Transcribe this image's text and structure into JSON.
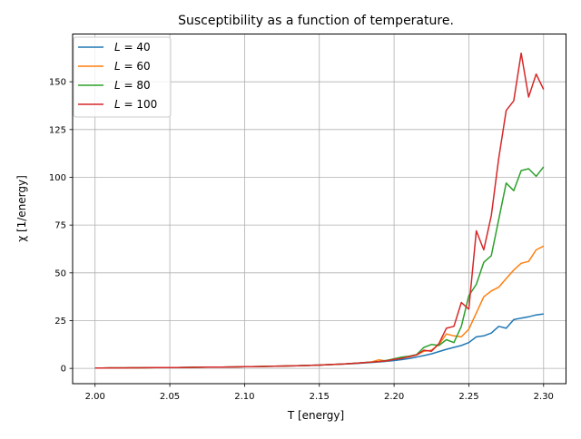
{
  "chart_data": {
    "type": "line",
    "title": "Susceptibility as a function of temperature.",
    "xlabel": "T [energy]",
    "ylabel": "χ [1/energy]",
    "xlim": [
      1.985,
      2.315
    ],
    "ylim": [
      -8,
      175
    ],
    "xticks": [
      2.0,
      2.05,
      2.1,
      2.15,
      2.2,
      2.25,
      2.3
    ],
    "xtick_labels": [
      "2.00",
      "2.05",
      "2.10",
      "2.15",
      "2.20",
      "2.25",
      "2.30"
    ],
    "yticks": [
      0,
      25,
      50,
      75,
      100,
      125,
      150
    ],
    "ytick_labels": [
      "0",
      "25",
      "50",
      "75",
      "100",
      "125",
      "150"
    ],
    "grid": true,
    "legend_position": "top-left",
    "x": [
      2.0,
      2.005,
      2.01,
      2.015,
      2.02,
      2.025,
      2.03,
      2.035,
      2.04,
      2.045,
      2.05,
      2.055,
      2.06,
      2.065,
      2.07,
      2.075,
      2.08,
      2.085,
      2.09,
      2.095,
      2.1,
      2.105,
      2.11,
      2.115,
      2.12,
      2.125,
      2.13,
      2.135,
      2.14,
      2.145,
      2.15,
      2.155,
      2.16,
      2.165,
      2.17,
      2.175,
      2.18,
      2.185,
      2.19,
      2.195,
      2.2,
      2.205,
      2.21,
      2.215,
      2.22,
      2.225,
      2.23,
      2.235,
      2.24,
      2.245,
      2.25,
      2.255,
      2.26,
      2.265,
      2.27,
      2.275,
      2.28,
      2.285,
      2.29,
      2.295,
      2.3
    ],
    "series": [
      {
        "name_prefix": "L",
        "name_suffix": " = 40",
        "color": "#1f77b4",
        "values": [
          0.2,
          0.22,
          0.24,
          0.26,
          0.28,
          0.3,
          0.32,
          0.35,
          0.38,
          0.41,
          0.44,
          0.47,
          0.5,
          0.54,
          0.58,
          0.62,
          0.66,
          0.7,
          0.75,
          0.8,
          0.86,
          0.92,
          0.98,
          1.05,
          1.12,
          1.2,
          1.3,
          1.4,
          1.5,
          1.62,
          1.75,
          1.9,
          2.05,
          2.2,
          2.4,
          2.6,
          2.85,
          3.1,
          3.4,
          3.7,
          4.1,
          4.6,
          5.2,
          5.9,
          6.7,
          7.6,
          8.8,
          10.0,
          11.0,
          12.0,
          13.5,
          16.5,
          17.0,
          18.5,
          22.0,
          21.0,
          25.5,
          26.3,
          27.0,
          28.0,
          28.5
        ]
      },
      {
        "name_prefix": "L",
        "name_suffix": " = 60",
        "color": "#ff7f0e",
        "values": [
          0.2,
          0.22,
          0.24,
          0.26,
          0.28,
          0.3,
          0.32,
          0.35,
          0.38,
          0.41,
          0.44,
          0.47,
          0.5,
          0.54,
          0.58,
          0.62,
          0.66,
          0.7,
          0.75,
          0.8,
          0.86,
          0.92,
          0.98,
          1.05,
          1.12,
          1.2,
          1.3,
          1.4,
          1.5,
          1.62,
          1.75,
          1.9,
          2.05,
          2.25,
          2.5,
          2.75,
          3.0,
          3.4,
          4.5,
          3.8,
          5.0,
          5.5,
          6.0,
          7.0,
          9.0,
          9.5,
          12.5,
          18.0,
          17.0,
          16.5,
          20.5,
          29.0,
          37.5,
          40.5,
          42.5,
          47.0,
          51.5,
          55.0,
          56.0,
          62.0,
          64.0
        ]
      },
      {
        "name_prefix": "L",
        "name_suffix": " = 80",
        "color": "#2ca02c",
        "values": [
          0.2,
          0.22,
          0.24,
          0.26,
          0.28,
          0.3,
          0.32,
          0.35,
          0.38,
          0.41,
          0.44,
          0.47,
          0.5,
          0.54,
          0.58,
          0.62,
          0.66,
          0.7,
          0.75,
          0.8,
          0.86,
          0.92,
          0.98,
          1.05,
          1.12,
          1.2,
          1.3,
          1.4,
          1.5,
          1.62,
          1.75,
          1.9,
          2.05,
          2.25,
          2.5,
          2.75,
          3.0,
          3.3,
          3.6,
          4.2,
          5.0,
          5.9,
          6.4,
          7.2,
          11.0,
          12.5,
          12.0,
          15.0,
          13.5,
          22.0,
          38.0,
          44.0,
          55.5,
          59.0,
          78.0,
          97.0,
          93.0,
          103.5,
          104.5,
          100.5,
          105.5
        ]
      },
      {
        "name_prefix": "L",
        "name_suffix": " = 100",
        "color": "#d62728",
        "values": [
          0.2,
          0.22,
          0.24,
          0.26,
          0.28,
          0.3,
          0.32,
          0.35,
          0.38,
          0.41,
          0.44,
          0.47,
          0.5,
          0.54,
          0.58,
          0.62,
          0.66,
          0.7,
          0.75,
          0.8,
          0.86,
          0.92,
          0.98,
          1.05,
          1.12,
          1.2,
          1.3,
          1.4,
          1.5,
          1.62,
          1.75,
          1.9,
          2.05,
          2.25,
          2.5,
          2.75,
          3.0,
          3.3,
          3.6,
          4.0,
          4.7,
          5.2,
          6.2,
          7.0,
          9.5,
          9.0,
          13.0,
          21.0,
          22.0,
          34.5,
          31.0,
          72.0,
          62.0,
          80.0,
          110.0,
          135.0,
          140.0,
          165.0,
          142.0,
          154.0,
          146.0
        ]
      }
    ]
  }
}
